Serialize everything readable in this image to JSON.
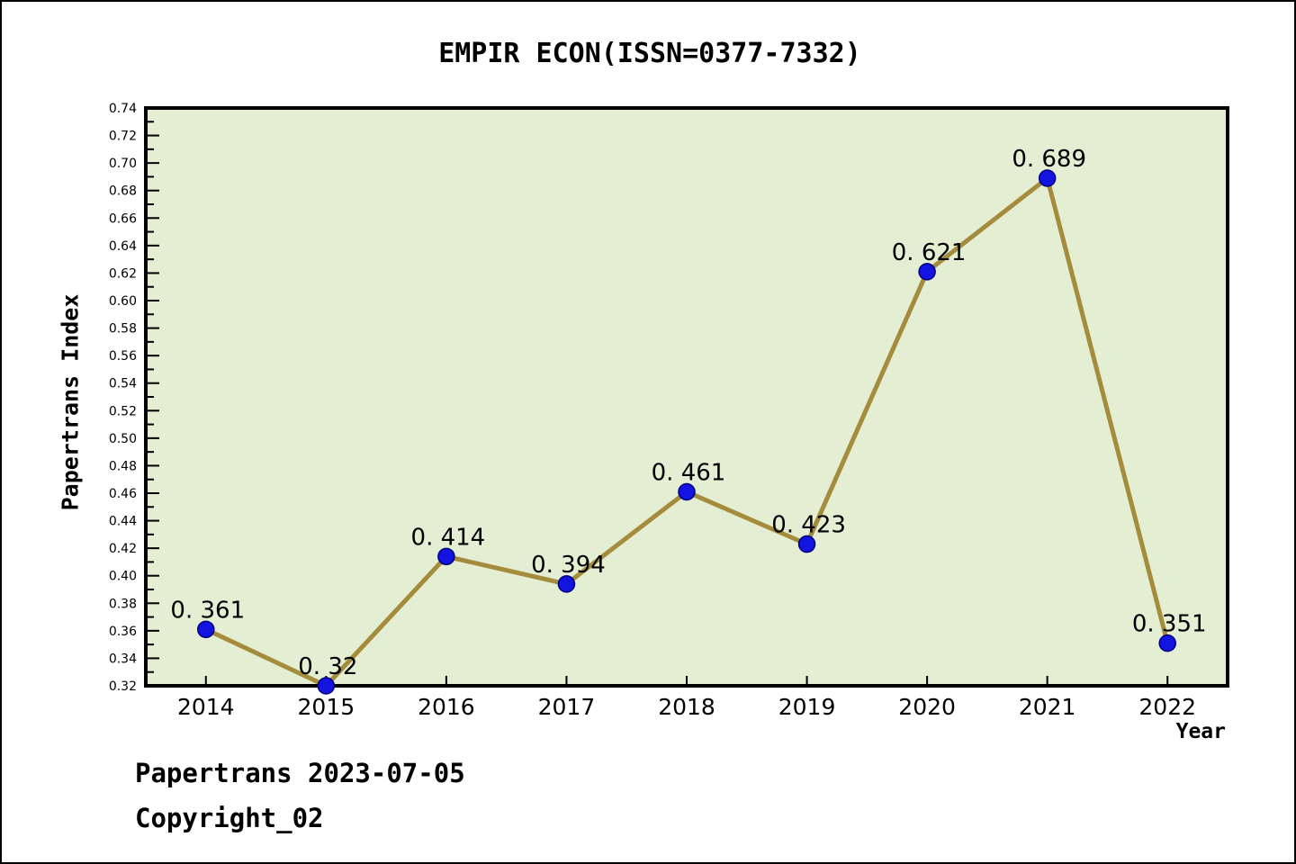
{
  "title": "EMPIR ECON(ISSN=0377-7332)",
  "footer": {
    "line1": "Papertrans 2023-07-05",
    "line2": "Copyright_02"
  },
  "chart_data": {
    "type": "line",
    "title": "EMPIR ECON(ISSN=0377-7332)",
    "xlabel": "Year",
    "ylabel": "Papertrans Index",
    "x": [
      2014,
      2015,
      2016,
      2017,
      2018,
      2019,
      2020,
      2021,
      2022
    ],
    "values": [
      0.361,
      0.32,
      0.414,
      0.394,
      0.461,
      0.423,
      0.621,
      0.689,
      0.351
    ],
    "point_labels": [
      "0. 361",
      "0. 32",
      "0. 414",
      "0. 394",
      "0. 461",
      "0. 423",
      "0. 621",
      "0. 689",
      "0. 351"
    ],
    "xlim": [
      2013.5,
      2022.5
    ],
    "ylim": [
      0.32,
      0.74
    ],
    "y_major_step": 0.02,
    "y_minor_step": 0.01,
    "grid": false,
    "legend": "none",
    "colors": {
      "plot_bg": "#e3eed3",
      "line": "#a58c3c",
      "marker": "#1414e1",
      "marker_edge": "#000080",
      "axis": "#000000",
      "text": "#000000"
    }
  }
}
